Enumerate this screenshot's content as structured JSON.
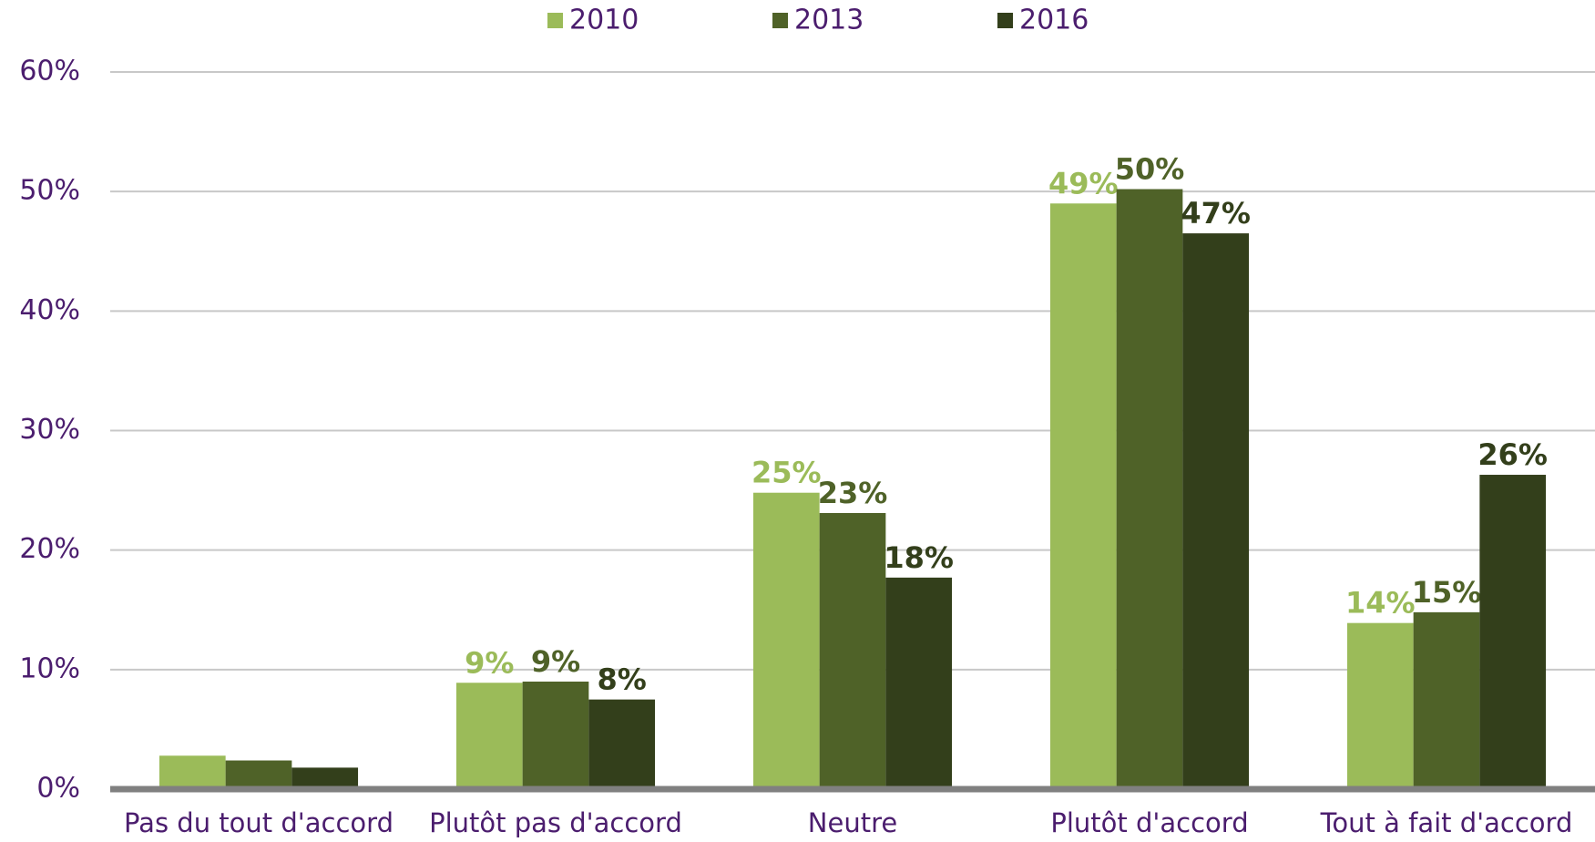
{
  "chart_data": {
    "type": "bar",
    "categories": [
      "Pas du tout d'accord",
      "Plutôt pas d'accord",
      "Neutre",
      "Plutôt d'accord",
      "Tout à fait d'accord"
    ],
    "series": [
      {
        "name": "2010",
        "color": "#9bbb59",
        "values": [
          2.8,
          8.9,
          24.8,
          49.0,
          13.9
        ],
        "value_labels": [
          null,
          "9%",
          "25%",
          "49%",
          "14%"
        ]
      },
      {
        "name": "2013",
        "color": "#4f6228",
        "values": [
          2.4,
          9.0,
          23.1,
          50.2,
          14.8
        ],
        "value_labels": [
          null,
          "9%",
          "23%",
          "50%",
          "15%"
        ]
      },
      {
        "name": "2016",
        "color": "#333f1b",
        "values": [
          1.8,
          7.5,
          17.7,
          46.5,
          26.3
        ],
        "value_labels": [
          null,
          "8%",
          "18%",
          "47%",
          "26%"
        ]
      }
    ],
    "ylim": [
      0,
      60
    ],
    "yticks": [
      {
        "value": 0,
        "label": "0%"
      },
      {
        "value": 10,
        "label": "10%"
      },
      {
        "value": 20,
        "label": "20%"
      },
      {
        "value": 30,
        "label": "30%"
      },
      {
        "value": 40,
        "label": "40%"
      },
      {
        "value": 50,
        "label": "50%"
      },
      {
        "value": 60,
        "label": "60%"
      }
    ],
    "grid": true,
    "legend": "top"
  }
}
